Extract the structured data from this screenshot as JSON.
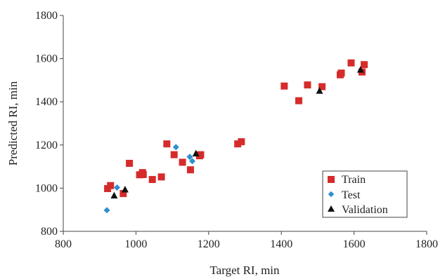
{
  "chart_data": {
    "type": "scatter",
    "xlabel": "Target RI, min",
    "ylabel": "Predicted RI, min",
    "xlim": [
      800,
      1800
    ],
    "ylim": [
      800,
      1800
    ],
    "xticks": [
      "800",
      "1000",
      "1200",
      "1400",
      "1600",
      "1800"
    ],
    "yticks": [
      "800",
      "1000",
      "1200",
      "1400",
      "1600",
      "1800"
    ],
    "grid": false,
    "legend_position": "bottom-right",
    "series": [
      {
        "name": "Train",
        "marker": "square",
        "color": "#d62b2b",
        "points": [
          [
            922,
            998
          ],
          [
            930,
            1012
          ],
          [
            965,
            975
          ],
          [
            982,
            1115
          ],
          [
            1010,
            1062
          ],
          [
            1018,
            1072
          ],
          [
            1020,
            1063
          ],
          [
            1045,
            1040
          ],
          [
            1070,
            1052
          ],
          [
            1085,
            1205
          ],
          [
            1105,
            1155
          ],
          [
            1128,
            1120
          ],
          [
            1150,
            1085
          ],
          [
            1175,
            1150
          ],
          [
            1178,
            1155
          ],
          [
            1280,
            1205
          ],
          [
            1290,
            1215
          ],
          [
            1408,
            1473
          ],
          [
            1448,
            1405
          ],
          [
            1472,
            1478
          ],
          [
            1512,
            1470
          ],
          [
            1562,
            1525
          ],
          [
            1565,
            1533
          ],
          [
            1592,
            1580
          ],
          [
            1622,
            1538
          ],
          [
            1628,
            1572
          ]
        ]
      },
      {
        "name": "Test",
        "marker": "diamond",
        "color": "#2e8fd0",
        "points": [
          [
            920,
            898
          ],
          [
            948,
            1003
          ],
          [
            1110,
            1190
          ],
          [
            1148,
            1145
          ],
          [
            1155,
            1125
          ]
        ]
      },
      {
        "name": "Validation",
        "marker": "triangle",
        "color": "#111111",
        "points": [
          [
            940,
            965
          ],
          [
            970,
            993
          ],
          [
            1165,
            1160
          ],
          [
            1505,
            1450
          ],
          [
            1618,
            1548
          ]
        ]
      }
    ]
  }
}
